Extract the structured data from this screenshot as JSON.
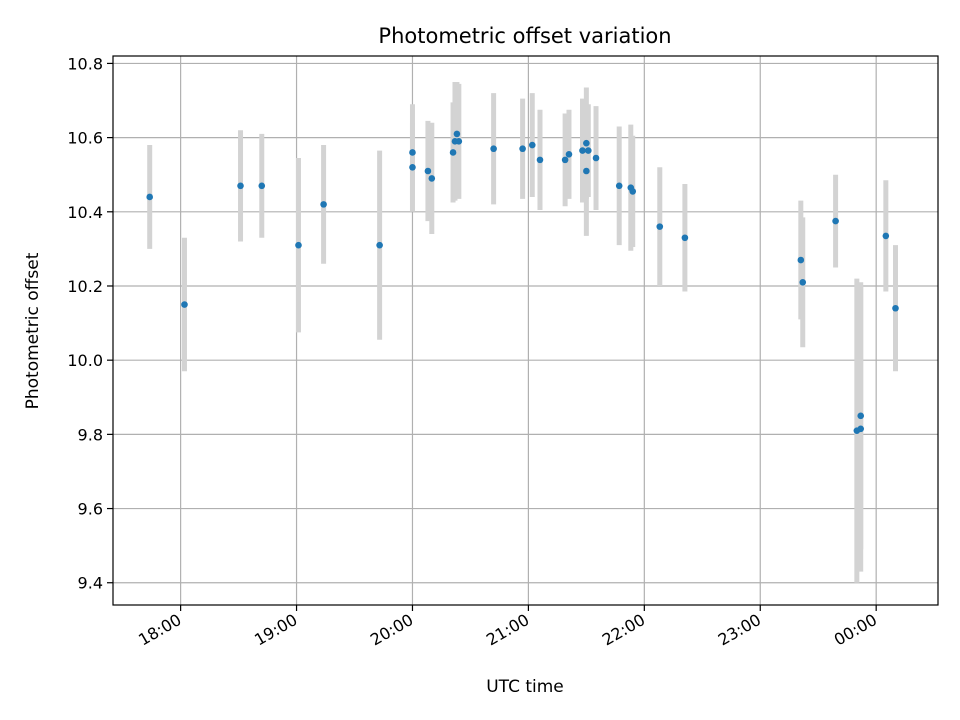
{
  "chart_data": {
    "type": "scatter",
    "title": "Photometric offset variation",
    "xlabel": "UTC time",
    "ylabel": "Photometric offset",
    "xlim": [
      "17:25",
      "00:32"
    ],
    "ylim": [
      9.34,
      10.82
    ],
    "grid": true,
    "x_ticks": [
      "18:00",
      "19:00",
      "20:00",
      "21:00",
      "22:00",
      "23:00",
      "00:00"
    ],
    "y_ticks": [
      "9.4",
      "9.6",
      "9.8",
      "10.0",
      "10.2",
      "10.4",
      "10.6",
      "10.8"
    ],
    "point_color": "#1f77b4",
    "errorbar_color": "#d3d3d3",
    "series": [
      {
        "points": [
          {
            "x": "17:44",
            "y": 10.44,
            "err": 0.14
          },
          {
            "x": "18:02",
            "y": 10.15,
            "err": 0.18
          },
          {
            "x": "18:31",
            "y": 10.47,
            "err": 0.15
          },
          {
            "x": "18:42",
            "y": 10.47,
            "err": 0.14
          },
          {
            "x": "19:01",
            "y": 10.31,
            "err": 0.235
          },
          {
            "x": "19:14",
            "y": 10.42,
            "err": 0.16
          },
          {
            "x": "19:43",
            "y": 10.31,
            "err": 0.255
          },
          {
            "x": "20:00",
            "y": 10.56,
            "err": 0.13
          },
          {
            "x": "20:00",
            "y": 10.52,
            "err": 0.12
          },
          {
            "x": "20:08",
            "y": 10.51,
            "err": 0.135
          },
          {
            "x": "20:10",
            "y": 10.49,
            "err": 0.15
          },
          {
            "x": "20:21",
            "y": 10.56,
            "err": 0.135
          },
          {
            "x": "20:22",
            "y": 10.59,
            "err": 0.16
          },
          {
            "x": "20:23",
            "y": 10.61,
            "err": 0.14
          },
          {
            "x": "20:24",
            "y": 10.59,
            "err": 0.155
          },
          {
            "x": "20:42",
            "y": 10.57,
            "err": 0.15
          },
          {
            "x": "20:57",
            "y": 10.57,
            "err": 0.135
          },
          {
            "x": "21:02",
            "y": 10.58,
            "err": 0.14
          },
          {
            "x": "21:06",
            "y": 10.54,
            "err": 0.135
          },
          {
            "x": "21:19",
            "y": 10.54,
            "err": 0.125
          },
          {
            "x": "21:21",
            "y": 10.555,
            "err": 0.12
          },
          {
            "x": "21:28",
            "y": 10.565,
            "err": 0.14
          },
          {
            "x": "21:30",
            "y": 10.51,
            "err": 0.175
          },
          {
            "x": "21:30",
            "y": 10.585,
            "err": 0.15
          },
          {
            "x": "21:31",
            "y": 10.565,
            "err": 0.125
          },
          {
            "x": "21:35",
            "y": 10.545,
            "err": 0.14
          },
          {
            "x": "21:47",
            "y": 10.47,
            "err": 0.16
          },
          {
            "x": "21:53",
            "y": 10.465,
            "err": 0.17
          },
          {
            "x": "21:54",
            "y": 10.455,
            "err": 0.15
          },
          {
            "x": "22:08",
            "y": 10.36,
            "err": 0.16
          },
          {
            "x": "22:21",
            "y": 10.33,
            "err": 0.145
          },
          {
            "x": "23:21",
            "y": 10.27,
            "err": 0.16
          },
          {
            "x": "23:22",
            "y": 10.21,
            "err": 0.175
          },
          {
            "x": "23:39",
            "y": 10.375,
            "err": 0.125
          },
          {
            "x": "23:50",
            "y": 9.81,
            "err": 0.41
          },
          {
            "x": "23:52",
            "y": 9.85,
            "err": 0.36
          },
          {
            "x": "23:52",
            "y": 9.815,
            "err": 0.385
          },
          {
            "x": "00:05",
            "y": 10.335,
            "err": 0.15
          },
          {
            "x": "00:10",
            "y": 10.14,
            "err": 0.17
          }
        ]
      }
    ]
  }
}
